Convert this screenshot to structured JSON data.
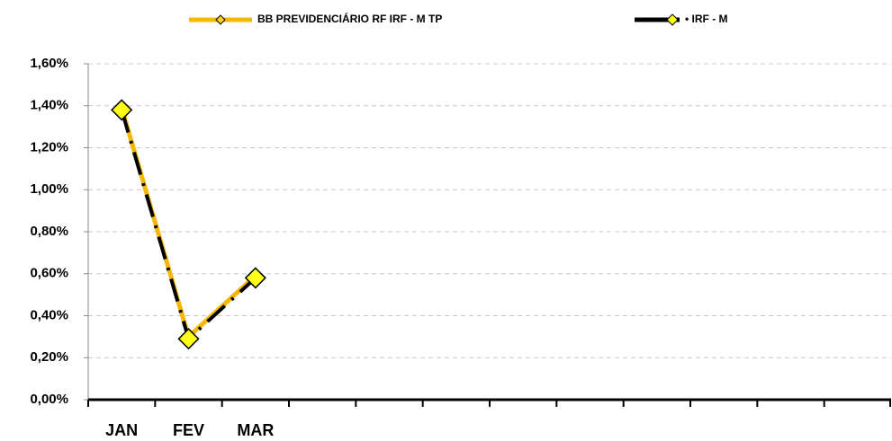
{
  "chart_data": {
    "type": "line",
    "categories": [
      "JAN",
      "FEV",
      "MAR",
      null,
      null,
      null,
      null,
      null,
      null,
      null,
      null,
      null
    ],
    "series": [
      {
        "name": "BB PREVIDENCIÁRIO RF IRF - M TP",
        "color": "#f5b800",
        "values": [
          1.39,
          0.3,
          0.59,
          null,
          null,
          null,
          null,
          null,
          null,
          null,
          null,
          null
        ]
      },
      {
        "name": "• IRF - M",
        "color": "#000000",
        "values": [
          1.38,
          0.29,
          0.58,
          null,
          null,
          null,
          null,
          null,
          null,
          null,
          null,
          null
        ]
      }
    ],
    "ylim": [
      0,
      1.6
    ],
    "yticks": [
      {
        "value": 0,
        "label": "0,00%"
      },
      {
        "value": 0.2,
        "label": "0,20%"
      },
      {
        "value": 0.4,
        "label": "0,40%"
      },
      {
        "value": 0.6,
        "label": "0,60%"
      },
      {
        "value": 0.8,
        "label": "0,80%"
      },
      {
        "value": 1.0,
        "label": "1,00%"
      },
      {
        "value": 1.2,
        "label": "1,20%"
      },
      {
        "value": 1.4,
        "label": "1,40%"
      },
      {
        "value": 1.6,
        "label": "1,60%"
      }
    ],
    "grid": true,
    "legend": "top"
  }
}
